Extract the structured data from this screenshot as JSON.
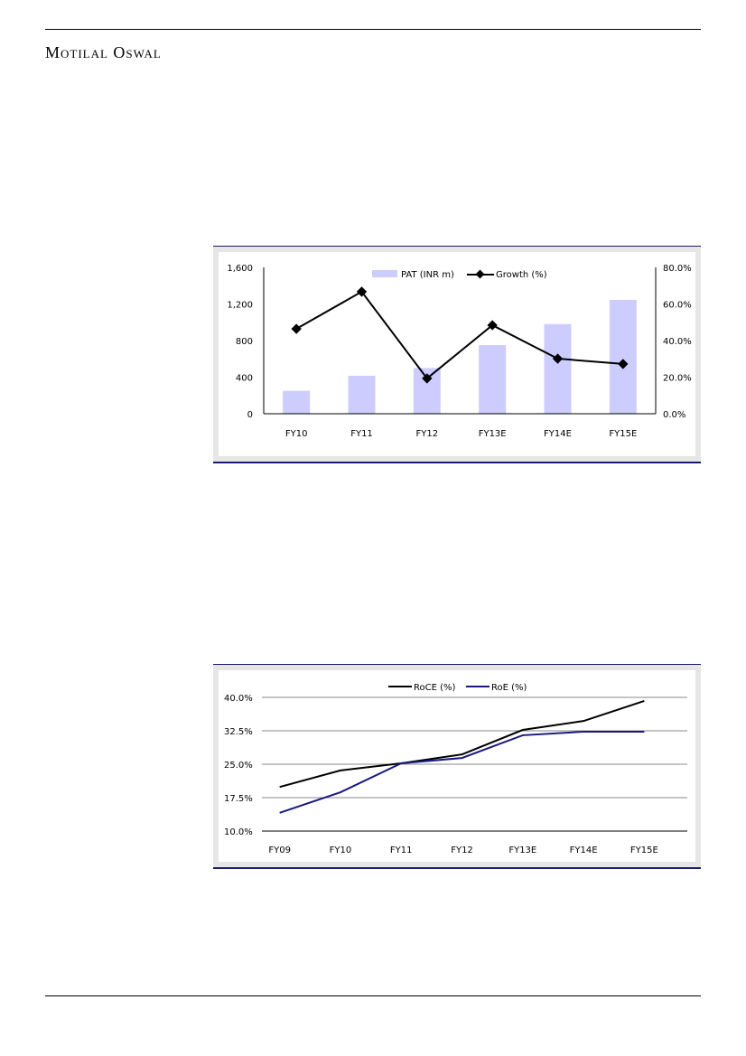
{
  "header": {
    "brand": "Motilal Oswal"
  },
  "chart_data": [
    {
      "type": "bar",
      "title": "",
      "categories": [
        "FY10",
        "FY11",
        "FY12",
        "FY13E",
        "FY14E",
        "FY15E"
      ],
      "series": [
        {
          "name": "PAT (INR m)",
          "type": "bar",
          "axis": "left",
          "values": [
            250,
            415,
            500,
            750,
            980,
            1245
          ],
          "color": "#ccccff"
        },
        {
          "name": "Growth (%)",
          "type": "line",
          "axis": "right",
          "values": [
            46.4,
            66.7,
            19.3,
            48.4,
            30.1,
            27.2
          ],
          "color": "#000000"
        }
      ],
      "ylim": [
        0,
        1600
      ],
      "yticks": [
        "0",
        "400",
        "800",
        "1,200",
        "1,600"
      ],
      "ylim_right": [
        0,
        80
      ],
      "yticks_right": [
        "0.0%",
        "20.0%",
        "40.0%",
        "60.0%",
        "80.0%"
      ],
      "legend": "top-center",
      "grid": false
    },
    {
      "type": "line",
      "title": "",
      "categories": [
        "FY09",
        "FY10",
        "FY11",
        "FY12",
        "FY13E",
        "FY14E",
        "FY15E"
      ],
      "series": [
        {
          "name": "RoCE (%)",
          "values": [
            19.9,
            23.6,
            25.2,
            27.2,
            32.7,
            34.7,
            39.2
          ],
          "color": "#000000"
        },
        {
          "name": "RoE (%)",
          "values": [
            14.1,
            18.7,
            25.2,
            26.4,
            31.5,
            32.3,
            32.3
          ],
          "color": "#1a1a80"
        }
      ],
      "ylim": [
        10,
        40
      ],
      "yticks": [
        "10.0%",
        "17.5%",
        "25.0%",
        "32.5%",
        "40.0%"
      ],
      "legend": "top-center",
      "grid": true
    }
  ]
}
